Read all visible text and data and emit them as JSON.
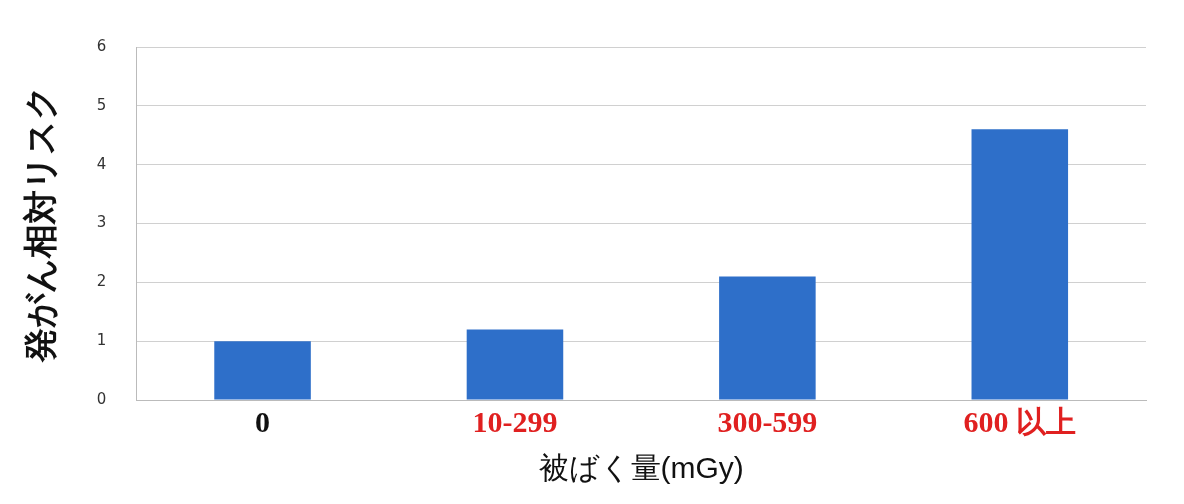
{
  "chart_data": {
    "type": "bar",
    "xlabel": "被ばく量(mGy)",
    "ylabel": "発がん相対リスク",
    "categories": [
      "0",
      "10-299",
      "300-599",
      "600 以上"
    ],
    "series": [
      {
        "color": "#2e6fc9",
        "values": [
          1.0,
          1.2,
          2.1,
          4.6
        ]
      }
    ],
    "ylim": [
      0,
      6
    ],
    "yticks": [
      0,
      1,
      2,
      3,
      4,
      5,
      6
    ],
    "grid": "y",
    "legend": false
  }
}
